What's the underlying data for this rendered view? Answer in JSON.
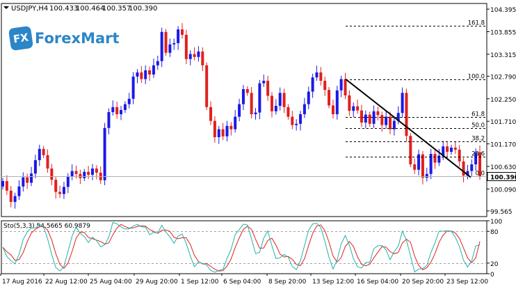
{
  "chart_data": [
    {
      "type": "candlestick",
      "title": "USDJPY,H4",
      "ohlc_header": [
        "100.433",
        "100.464",
        "100.357",
        "100.390"
      ],
      "y_ticks": [
        "104.395",
        "103.855",
        "103.315",
        "102.790",
        "102.250",
        "101.710",
        "101.170",
        "100.630",
        "100.090",
        "99.565"
      ],
      "ylim": [
        99.43,
        104.53
      ],
      "last_price": "100.390",
      "last_price_value": 100.39,
      "x_ticks": [
        "17 Aug 2016",
        "22 Aug 12:00",
        "25 Aug 04:00",
        "29 Aug 20:00",
        "1 Sep 12:00",
        "6 Sep 04:00",
        "8 Sep 20:00",
        "13 Sep 12:00",
        "16 Sep 04:00",
        "20 Sep 20:00",
        "23 Sep 12:00"
      ],
      "candle_colors": {
        "up": "#1a1ae6",
        "down": "#e0201e"
      },
      "fib_levels": [
        {
          "label": "161.8",
          "value": 103.99
        },
        {
          "label": "100.0",
          "value": 102.72
        },
        {
          "label": "61.8",
          "value": 101.82
        },
        {
          "label": "50.0",
          "value": 101.54
        },
        {
          "label": "38.2",
          "value": 101.23
        },
        {
          "label": "23.6",
          "value": 100.86
        },
        {
          "label": "0.0",
          "value": 100.39
        }
      ],
      "trendline": {
        "from": 102.72,
        "to": 100.37
      },
      "closes": [
        100.28,
        100.05,
        99.78,
        99.92,
        100.15,
        100.37,
        100.24,
        100.46,
        100.78,
        101.05,
        100.9,
        100.58,
        100.31,
        100.02,
        99.97,
        100.14,
        100.38,
        100.52,
        100.45,
        100.35,
        100.5,
        100.43,
        100.58,
        100.48,
        100.3,
        101.55,
        101.93,
        102.05,
        101.88,
        101.98,
        102.12,
        102.25,
        102.78,
        102.88,
        102.72,
        102.93,
        102.83,
        103.05,
        103.15,
        103.85,
        103.35,
        103.55,
        103.58,
        103.91,
        103.78,
        103.2,
        103.32,
        103.25,
        103.38,
        103.05,
        102.05,
        101.72,
        101.33,
        101.52,
        101.35,
        101.6,
        101.52,
        101.82,
        102.12,
        102.48,
        102.39,
        101.88,
        101.92,
        102.62,
        102.68,
        102.32,
        101.95,
        102.08,
        102.39,
        102.05,
        101.82,
        101.62,
        101.65,
        101.88,
        102.12,
        102.42,
        102.76,
        102.88,
        102.68,
        102.46,
        102.09,
        101.88,
        102.45,
        102.72,
        102.33,
        101.96,
        102.07,
        101.97,
        101.68,
        101.87,
        101.65,
        101.95,
        101.86,
        101.62,
        101.82,
        101.52,
        101.72,
        101.91,
        102.39,
        101.36,
        100.68,
        100.55,
        100.92,
        100.36,
        100.45,
        100.93,
        100.72,
        100.89,
        101.11,
        100.98,
        101.08,
        101.03,
        100.75,
        100.41,
        100.52,
        100.68,
        100.97,
        100.39
      ],
      "stochastic": {
        "label": "Sto(5,3,3) 54.5665 60.9879",
        "main": 54.5665,
        "signal": 60.9879,
        "levels": [
          20,
          80
        ],
        "y_ticks": [
          "100",
          "80",
          "20",
          "0"
        ],
        "ylim": [
          0,
          100
        ],
        "colors": {
          "main": "#20b2aa",
          "signal": "#e0201e"
        }
      }
    }
  ],
  "logo": {
    "badge": "FX",
    "text": "ForexMart"
  }
}
